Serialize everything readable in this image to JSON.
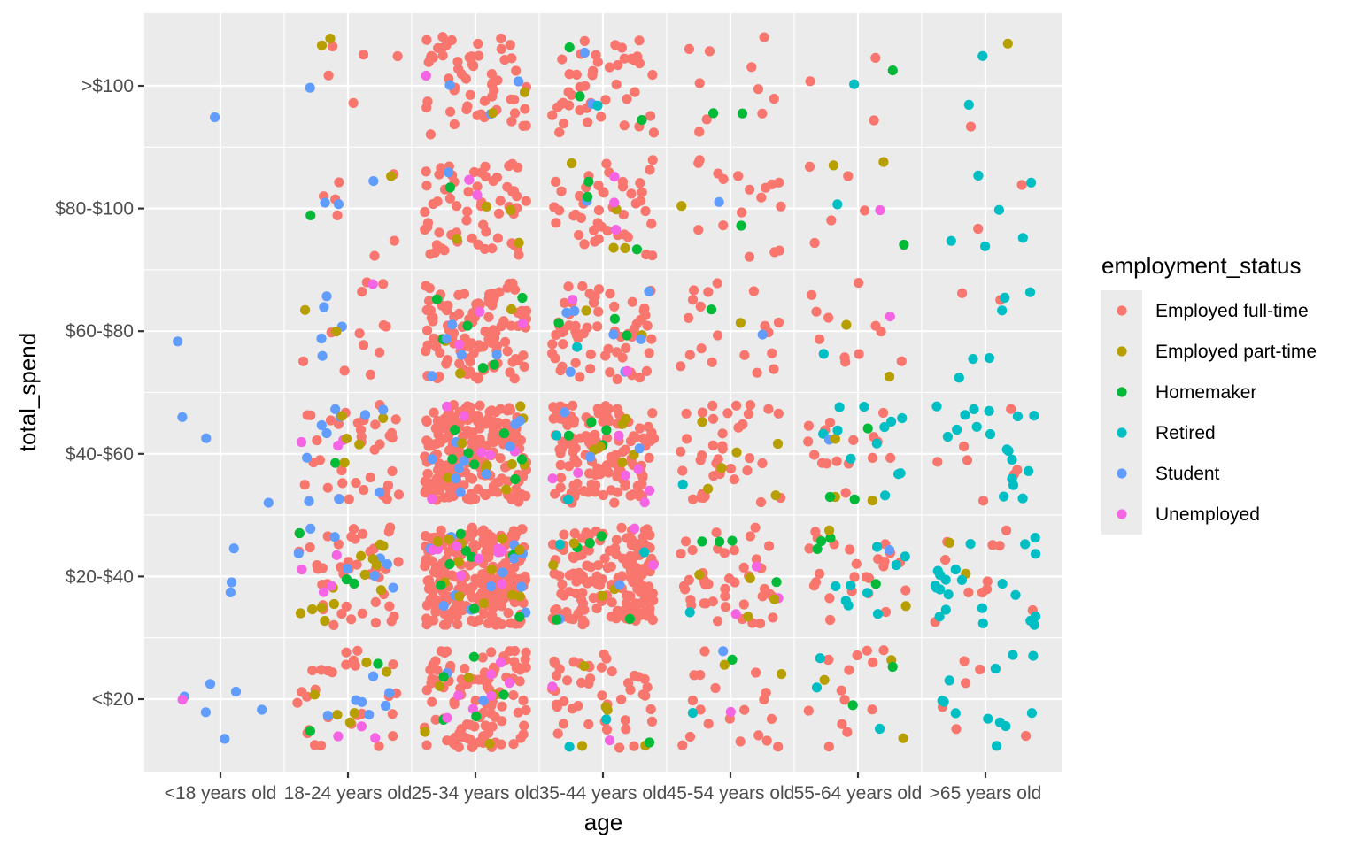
{
  "chart_data": {
    "type": "scatter",
    "subtype": "jitter",
    "title": "",
    "xlabel": "age",
    "ylabel": "total_spend",
    "x_categories": [
      "<18 years old",
      "18-24 years old",
      "25-34 years old",
      "35-44 years old",
      "45-54 years old",
      "55-64 years old",
      ">65 years old"
    ],
    "y_categories": [
      "<$20",
      "$20-$40",
      "$40-$60",
      "$60-$80",
      "$80-$100",
      ">$100"
    ],
    "grid": true,
    "legend": {
      "title": "employment_status",
      "placement": "right",
      "items": [
        {
          "name": "Employed full-time",
          "color": "#F8766D"
        },
        {
          "name": "Employed part-time",
          "color": "#B79F00"
        },
        {
          "name": "Homemaker",
          "color": "#00BA38"
        },
        {
          "name": "Retired",
          "color": "#00BFC4"
        },
        {
          "name": "Student",
          "color": "#619CFF"
        },
        {
          "name": "Unemployed",
          "color": "#F564E3"
        }
      ]
    },
    "counts": {
      "note": "approximate number of respondents per age group (rows: age groups in x_categories order; columns: y_categories order)",
      "matrix": [
        [
          7,
          3,
          3,
          1,
          0,
          1
        ],
        [
          45,
          70,
          55,
          20,
          12,
          8
        ],
        [
          120,
          260,
          240,
          130,
          70,
          65
        ],
        [
          55,
          170,
          150,
          80,
          55,
          50
        ],
        [
          25,
          55,
          45,
          22,
          20,
          12
        ],
        [
          22,
          40,
          35,
          15,
          10,
          5
        ],
        [
          18,
          35,
          25,
          8,
          8,
          4
        ]
      ]
    },
    "status_mix": {
      "note": "approximate share of each employment_status within each age group (legend order)",
      "by_age": [
        [
          0.0,
          0.05,
          0.0,
          0.0,
          0.85,
          0.1
        ],
        [
          0.62,
          0.12,
          0.02,
          0.0,
          0.2,
          0.04
        ],
        [
          0.84,
          0.05,
          0.04,
          0.0,
          0.05,
          0.02
        ],
        [
          0.85,
          0.04,
          0.05,
          0.01,
          0.03,
          0.02
        ],
        [
          0.82,
          0.08,
          0.05,
          0.02,
          0.01,
          0.02
        ],
        [
          0.64,
          0.08,
          0.07,
          0.18,
          0.01,
          0.02
        ],
        [
          0.28,
          0.1,
          0.0,
          0.62,
          0.0,
          0.0
        ]
      ]
    }
  }
}
